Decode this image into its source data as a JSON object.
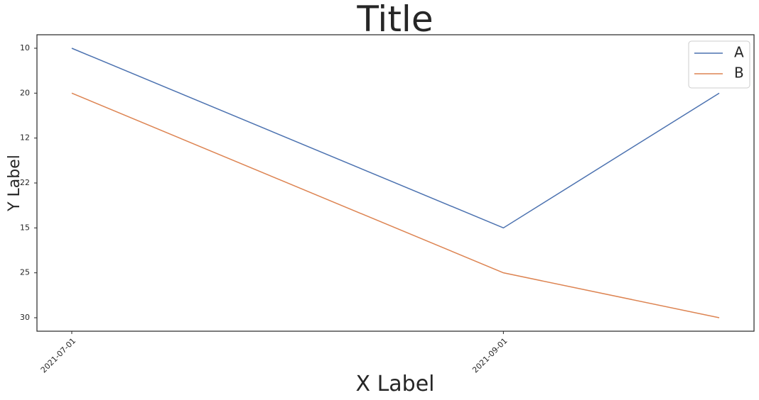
{
  "chart_data": {
    "type": "line",
    "title": "Title",
    "x_label": "X Label",
    "y_label": "Y Label",
    "x": [
      "2021-07-01",
      "2021-09-01",
      "2021-10-02"
    ],
    "xlim": [
      "2021-06-26",
      "2021-10-07"
    ],
    "xticks": [
      "2021-07-01",
      "2021-09-01"
    ],
    "ycategories": [
      "10",
      "20",
      "12",
      "22",
      "15",
      "25",
      "30"
    ],
    "series": [
      {
        "name": "A",
        "color": "#4c72b0",
        "values": [
          "10",
          "15",
          "20"
        ]
      },
      {
        "name": "B",
        "color": "#dd8452",
        "values": [
          "20",
          "25",
          "30"
        ]
      }
    ],
    "legend": "upper right",
    "grid": false
  }
}
